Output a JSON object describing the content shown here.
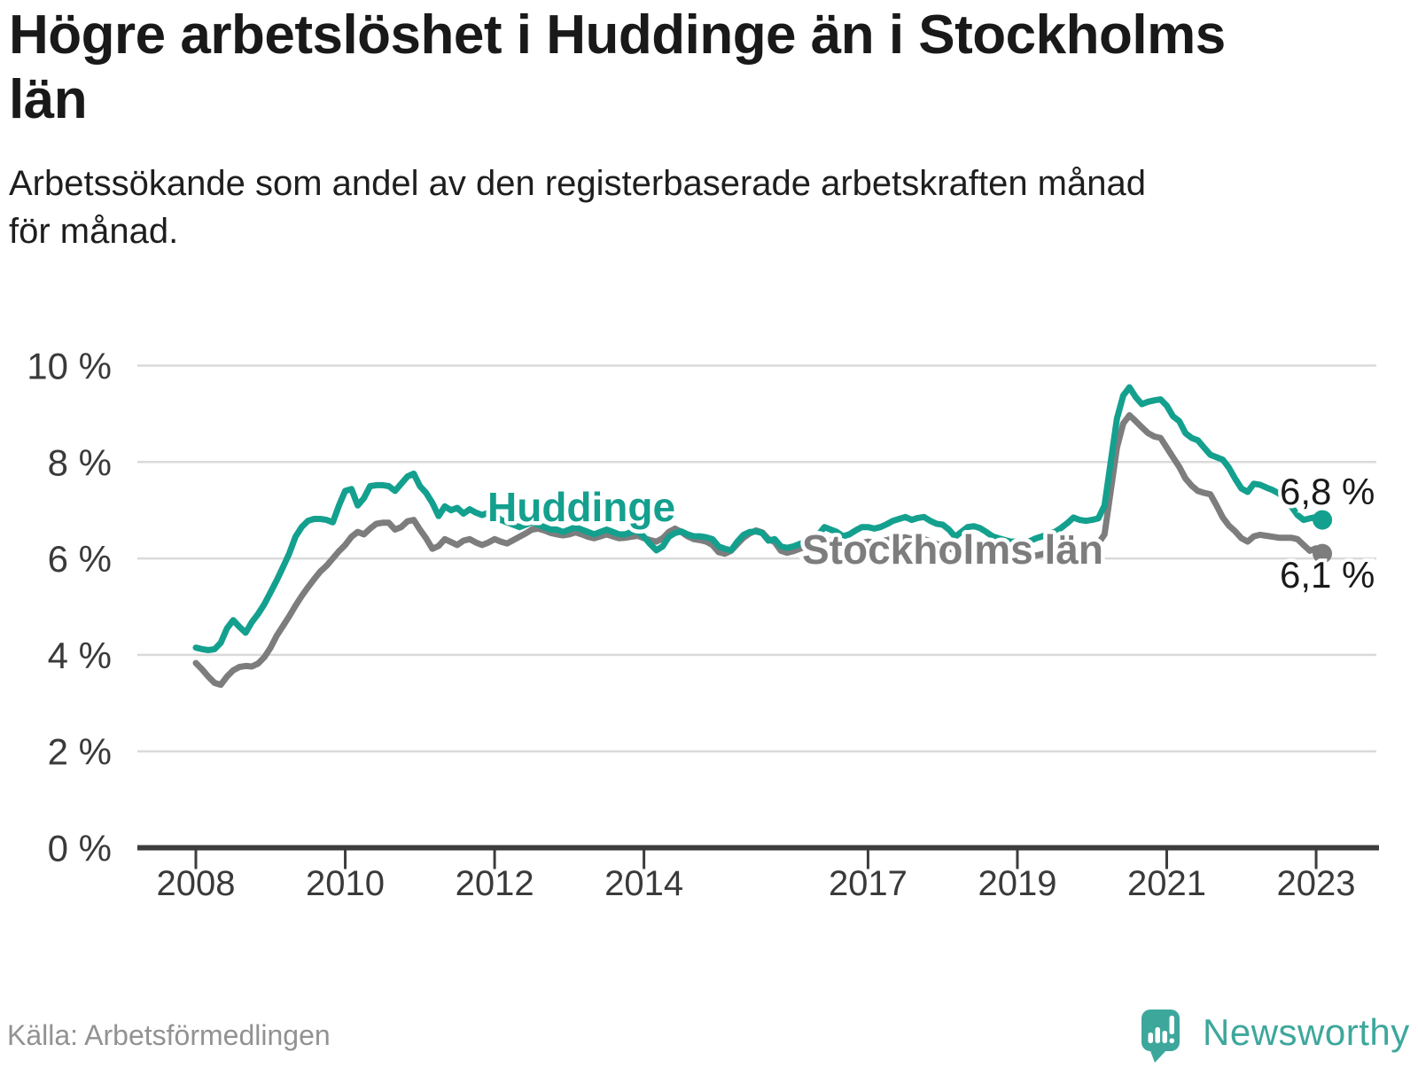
{
  "header": {
    "title": "Högre arbetslöshet i Huddinge än i Stockholms\nlän",
    "subtitle": "Arbetssökande som andel av den registerbaserade arbetskraften månad\nför månad."
  },
  "footer": {
    "source": "Källa: Arbetsförmedlingen",
    "brand": "Newsworthy"
  },
  "colors": {
    "huddinge": "#14a08e",
    "stockholm": "#7d7d7d",
    "brand_teal": "#3ea79c",
    "axis": "#3d3d3d",
    "grid": "#dadada",
    "label_text": "#1a1a1a",
    "tick_text": "#3a3a3a"
  },
  "chart_data": {
    "type": "line",
    "title": "Högre arbetslöshet i Huddinge än i Stockholms län",
    "subtitle": "Arbetssökande som andel av den registerbaserade arbetskraften månad för månad.",
    "x_unit": "month",
    "start": "2008-01",
    "end": "2023-02",
    "ylim": [
      0,
      10
    ],
    "grid": "horizontal",
    "legend_position": "inline-labels",
    "yticks": [
      {
        "value": 0,
        "label": "0 %"
      },
      {
        "value": 2,
        "label": "2 %"
      },
      {
        "value": 4,
        "label": "4 %"
      },
      {
        "value": 6,
        "label": "6 %"
      },
      {
        "value": 8,
        "label": "8 %"
      },
      {
        "value": 10,
        "label": "10 %"
      }
    ],
    "xticks": [
      {
        "year": 2008,
        "label": "2008"
      },
      {
        "year": 2010,
        "label": "2010"
      },
      {
        "year": 2012,
        "label": "2012"
      },
      {
        "year": 2014,
        "label": "2014"
      },
      {
        "year": 2017,
        "label": "2017"
      },
      {
        "year": 2019,
        "label": "2019"
      },
      {
        "year": 2021,
        "label": "2021"
      },
      {
        "year": 2023,
        "label": "2023"
      }
    ],
    "series": [
      {
        "name": "Stockholms län",
        "color": "#7d7d7d",
        "end_label": "6,1 %",
        "end_value": 6.1,
        "values": [
          3.83,
          3.7,
          3.55,
          3.42,
          3.38,
          3.55,
          3.68,
          3.75,
          3.77,
          3.76,
          3.82,
          3.95,
          4.15,
          4.4,
          4.6,
          4.8,
          5.02,
          5.22,
          5.4,
          5.57,
          5.73,
          5.85,
          6.0,
          6.15,
          6.28,
          6.45,
          6.55,
          6.5,
          6.62,
          6.72,
          6.74,
          6.74,
          6.6,
          6.65,
          6.77,
          6.8,
          6.6,
          6.42,
          6.2,
          6.26,
          6.4,
          6.34,
          6.28,
          6.37,
          6.4,
          6.33,
          6.28,
          6.33,
          6.4,
          6.35,
          6.31,
          6.38,
          6.45,
          6.52,
          6.6,
          6.62,
          6.58,
          6.53,
          6.5,
          6.48,
          6.5,
          6.54,
          6.5,
          6.45,
          6.42,
          6.46,
          6.5,
          6.46,
          6.42,
          6.43,
          6.45,
          6.47,
          6.42,
          6.38,
          6.35,
          6.42,
          6.55,
          6.62,
          6.55,
          6.46,
          6.4,
          6.38,
          6.35,
          6.28,
          6.13,
          6.1,
          6.16,
          6.3,
          6.43,
          6.52,
          6.58,
          6.54,
          6.4,
          6.34,
          6.16,
          6.12,
          6.15,
          6.2,
          6.25,
          6.28,
          6.31,
          6.35,
          6.38,
          6.33,
          6.26,
          6.22,
          6.28,
          6.32,
          6.35,
          6.32,
          6.35,
          6.38,
          6.41,
          6.43,
          6.44,
          6.4,
          6.38,
          6.4,
          6.36,
          6.3,
          6.28,
          6.22,
          6.15,
          6.12,
          6.2,
          6.25,
          6.23,
          6.17,
          6.12,
          6.08,
          6.05,
          6.03,
          6.02,
          6.0,
          6.03,
          6.06,
          6.09,
          6.13,
          6.16,
          6.2,
          6.25,
          6.3,
          6.28,
          6.26,
          6.28,
          6.31,
          6.5,
          7.4,
          8.3,
          8.8,
          8.97,
          8.85,
          8.72,
          8.6,
          8.53,
          8.5,
          8.3,
          8.1,
          7.9,
          7.66,
          7.51,
          7.4,
          7.36,
          7.33,
          7.1,
          6.85,
          6.68,
          6.56,
          6.42,
          6.35,
          6.46,
          6.49,
          6.47,
          6.45,
          6.43,
          6.43,
          6.43,
          6.4,
          6.28,
          6.16,
          6.21,
          6.1
        ]
      },
      {
        "name": "Huddinge",
        "color": "#14a08e",
        "end_label": "6,8 %",
        "end_value": 6.8,
        "values": [
          4.15,
          4.12,
          4.1,
          4.12,
          4.25,
          4.55,
          4.72,
          4.58,
          4.46,
          4.68,
          4.85,
          5.05,
          5.3,
          5.55,
          5.82,
          6.1,
          6.45,
          6.65,
          6.78,
          6.82,
          6.82,
          6.8,
          6.75,
          7.1,
          7.4,
          7.44,
          7.1,
          7.25,
          7.5,
          7.52,
          7.52,
          7.5,
          7.4,
          7.55,
          7.7,
          7.76,
          7.5,
          7.36,
          7.15,
          6.88,
          7.08,
          7.0,
          7.05,
          6.93,
          7.02,
          6.95,
          6.9,
          6.95,
          6.9,
          6.8,
          6.75,
          6.7,
          6.65,
          6.7,
          6.75,
          6.7,
          6.65,
          6.6,
          6.6,
          6.55,
          6.6,
          6.65,
          6.6,
          6.55,
          6.5,
          6.55,
          6.6,
          6.55,
          6.5,
          6.5,
          6.55,
          6.56,
          6.45,
          6.3,
          6.17,
          6.25,
          6.45,
          6.53,
          6.56,
          6.5,
          6.46,
          6.46,
          6.44,
          6.4,
          6.25,
          6.2,
          6.17,
          6.35,
          6.49,
          6.55,
          6.56,
          6.53,
          6.37,
          6.4,
          6.25,
          6.22,
          6.25,
          6.3,
          6.35,
          6.42,
          6.49,
          6.65,
          6.6,
          6.55,
          6.46,
          6.5,
          6.58,
          6.65,
          6.65,
          6.62,
          6.65,
          6.71,
          6.78,
          6.82,
          6.86,
          6.8,
          6.84,
          6.86,
          6.78,
          6.72,
          6.7,
          6.6,
          6.45,
          6.55,
          6.65,
          6.67,
          6.63,
          6.55,
          6.46,
          6.42,
          6.38,
          6.35,
          6.35,
          6.32,
          6.36,
          6.42,
          6.46,
          6.5,
          6.55,
          6.63,
          6.73,
          6.85,
          6.8,
          6.78,
          6.8,
          6.83,
          7.1,
          8.0,
          8.9,
          9.38,
          9.55,
          9.35,
          9.2,
          9.25,
          9.28,
          9.3,
          9.17,
          8.95,
          8.85,
          8.6,
          8.5,
          8.45,
          8.3,
          8.15,
          8.1,
          8.05,
          7.88,
          7.65,
          7.45,
          7.38,
          7.55,
          7.53,
          7.47,
          7.42,
          7.35,
          7.25,
          7.08,
          6.9,
          6.8,
          6.83,
          6.86,
          6.8
        ]
      }
    ]
  }
}
